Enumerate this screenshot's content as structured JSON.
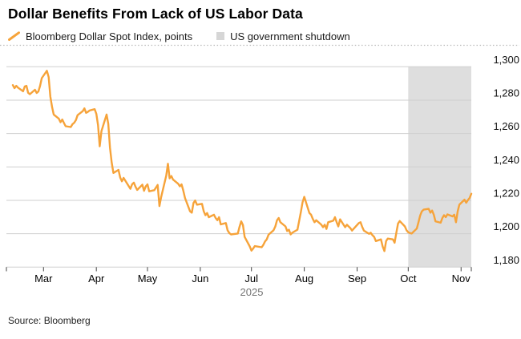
{
  "title": "Dollar Benefits From Lack of US Labor Data",
  "source": "Source: Bloomberg",
  "legend": [
    {
      "label": "Bloomberg Dollar Spot Index, points",
      "swatch": "line",
      "color": "#F6A33A"
    },
    {
      "label": "US government shutdown",
      "swatch": "square",
      "color": "#D6D6D6"
    }
  ],
  "colors": {
    "line": "#F6A33A",
    "shutdown_band": "#DEDEDE",
    "gridline": "#CFCFCF",
    "top_dotted": "#B8B8B8",
    "tick": "#444444",
    "axis_text": "#111111",
    "year_text": "#757575"
  },
  "chart_data": {
    "type": "line",
    "title": "Dollar Benefits From Lack of US Labor Data",
    "xlabel": "",
    "ylabel": "points",
    "x_axis": {
      "start": "2025-02-11",
      "end": "2025-11-07",
      "tick_months": [
        "2025-03-01",
        "2025-04-01",
        "2025-05-01",
        "2025-06-01",
        "2025-07-01",
        "2025-08-01",
        "2025-09-01",
        "2025-10-01",
        "2025-11-01"
      ],
      "tick_labels": [
        "Mar",
        "Apr",
        "May",
        "Jun",
        "Jul",
        "Aug",
        "Sep",
        "Oct",
        "Nov"
      ],
      "year_label": "2025"
    },
    "y_axis": {
      "min": 1180,
      "max": 1300,
      "step": 20,
      "tick_values": [
        1180,
        1200,
        1220,
        1240,
        1260,
        1280,
        1300
      ],
      "tick_labels": [
        "1,180",
        "1,200",
        "1,220",
        "1,240",
        "1,260",
        "1,280",
        "1,300"
      ],
      "grid": true,
      "labels_position": "right"
    },
    "shaded_region": {
      "label": "US government shutdown",
      "start": "2025-10-01",
      "end": "2025-11-07",
      "color": "#DEDEDE"
    },
    "legend_position": "top-left",
    "series": [
      {
        "name": "Bloomberg Dollar Spot Index, points",
        "color": "#F6A33A",
        "points": [
          [
            "2025-02-11",
            1289.0
          ],
          [
            "2025-02-12",
            1287.2
          ],
          [
            "2025-02-13",
            1288.6
          ],
          [
            "2025-02-14",
            1287.5
          ],
          [
            "2025-02-17",
            1285.3
          ],
          [
            "2025-02-18",
            1288.2
          ],
          [
            "2025-02-19",
            1288.6
          ],
          [
            "2025-02-20",
            1284.4
          ],
          [
            "2025-02-21",
            1283.6
          ],
          [
            "2025-02-24",
            1286.2
          ],
          [
            "2025-02-25",
            1284.3
          ],
          [
            "2025-02-26",
            1285.2
          ],
          [
            "2025-02-27",
            1288.6
          ],
          [
            "2025-02-28",
            1293.2
          ],
          [
            "2025-03-03",
            1297.6
          ],
          [
            "2025-03-04",
            1293.8
          ],
          [
            "2025-03-05",
            1282.2
          ],
          [
            "2025-03-06",
            1276.1
          ],
          [
            "2025-03-07",
            1271.4
          ],
          [
            "2025-03-10",
            1268.9
          ],
          [
            "2025-03-11",
            1266.8
          ],
          [
            "2025-03-12",
            1268.4
          ],
          [
            "2025-03-13",
            1266.3
          ],
          [
            "2025-03-14",
            1264.4
          ],
          [
            "2025-03-17",
            1263.9
          ],
          [
            "2025-03-18",
            1265.6
          ],
          [
            "2025-03-19",
            1266.5
          ],
          [
            "2025-03-20",
            1268.1
          ],
          [
            "2025-03-21",
            1271.0
          ],
          [
            "2025-03-24",
            1273.4
          ],
          [
            "2025-03-25",
            1275.1
          ],
          [
            "2025-03-26",
            1272.4
          ],
          [
            "2025-03-27",
            1273.0
          ],
          [
            "2025-03-28",
            1273.8
          ],
          [
            "2025-03-31",
            1274.6
          ],
          [
            "2025-04-01",
            1271.8
          ],
          [
            "2025-04-02",
            1265.0
          ],
          [
            "2025-04-03",
            1252.4
          ],
          [
            "2025-04-04",
            1261.5
          ],
          [
            "2025-04-07",
            1271.4
          ],
          [
            "2025-04-08",
            1265.8
          ],
          [
            "2025-04-09",
            1251.6
          ],
          [
            "2025-04-10",
            1242.8
          ],
          [
            "2025-04-11",
            1236.4
          ],
          [
            "2025-04-14",
            1238.2
          ],
          [
            "2025-04-15",
            1233.6
          ],
          [
            "2025-04-16",
            1231.4
          ],
          [
            "2025-04-17",
            1233.4
          ],
          [
            "2025-04-21",
            1226.9
          ],
          [
            "2025-04-22",
            1229.6
          ],
          [
            "2025-04-23",
            1230.6
          ],
          [
            "2025-04-24",
            1228.1
          ],
          [
            "2025-04-25",
            1226.2
          ],
          [
            "2025-04-28",
            1229.4
          ],
          [
            "2025-04-29",
            1225.7
          ],
          [
            "2025-04-30",
            1228.4
          ],
          [
            "2025-05-01",
            1229.6
          ],
          [
            "2025-05-02",
            1225.4
          ],
          [
            "2025-05-05",
            1226.1
          ],
          [
            "2025-05-07",
            1229.2
          ],
          [
            "2025-05-08",
            1216.6
          ],
          [
            "2025-05-09",
            1221.8
          ],
          [
            "2025-05-12",
            1234.8
          ],
          [
            "2025-05-13",
            1241.9
          ],
          [
            "2025-05-14",
            1233.2
          ],
          [
            "2025-05-15",
            1234.6
          ],
          [
            "2025-05-16",
            1232.4
          ],
          [
            "2025-05-19",
            1229.9
          ],
          [
            "2025-05-20",
            1228.4
          ],
          [
            "2025-05-21",
            1229.6
          ],
          [
            "2025-05-22",
            1226.0
          ],
          [
            "2025-05-23",
            1221.4
          ],
          [
            "2025-05-26",
            1213.4
          ],
          [
            "2025-05-27",
            1212.6
          ],
          [
            "2025-05-28",
            1218.4
          ],
          [
            "2025-05-29",
            1219.9
          ],
          [
            "2025-05-30",
            1217.4
          ],
          [
            "2025-06-02",
            1217.9
          ],
          [
            "2025-06-03",
            1213.4
          ],
          [
            "2025-06-04",
            1211.1
          ],
          [
            "2025-06-05",
            1212.4
          ],
          [
            "2025-06-06",
            1209.9
          ],
          [
            "2025-06-09",
            1211.4
          ],
          [
            "2025-06-10",
            1209.4
          ],
          [
            "2025-06-11",
            1208.1
          ],
          [
            "2025-06-12",
            1209.9
          ],
          [
            "2025-06-13",
            1205.6
          ],
          [
            "2025-06-16",
            1206.4
          ],
          [
            "2025-06-17",
            1202.1
          ],
          [
            "2025-06-18",
            1200.4
          ],
          [
            "2025-06-19",
            1199.6
          ],
          [
            "2025-06-23",
            1200.1
          ],
          [
            "2025-06-24",
            1204.1
          ],
          [
            "2025-06-25",
            1207.4
          ],
          [
            "2025-06-26",
            1205.2
          ],
          [
            "2025-06-27",
            1198.1
          ],
          [
            "2025-06-30",
            1192.4
          ],
          [
            "2025-07-01",
            1189.9
          ],
          [
            "2025-07-02",
            1191.1
          ],
          [
            "2025-07-03",
            1192.6
          ],
          [
            "2025-07-07",
            1191.9
          ],
          [
            "2025-07-08",
            1193.4
          ],
          [
            "2025-07-09",
            1195.4
          ],
          [
            "2025-07-10",
            1196.6
          ],
          [
            "2025-07-11",
            1199.4
          ],
          [
            "2025-07-14",
            1202.1
          ],
          [
            "2025-07-15",
            1204.4
          ],
          [
            "2025-07-16",
            1208.1
          ],
          [
            "2025-07-17",
            1209.4
          ],
          [
            "2025-07-18",
            1206.9
          ],
          [
            "2025-07-21",
            1204.4
          ],
          [
            "2025-07-22",
            1201.6
          ],
          [
            "2025-07-23",
            1202.4
          ],
          [
            "2025-07-24",
            1199.6
          ],
          [
            "2025-07-25",
            1200.6
          ],
          [
            "2025-07-28",
            1202.4
          ],
          [
            "2025-07-29",
            1207.6
          ],
          [
            "2025-07-30",
            1213.1
          ],
          [
            "2025-07-31",
            1218.9
          ],
          [
            "2025-08-01",
            1222.1
          ],
          [
            "2025-08-04",
            1212.4
          ],
          [
            "2025-08-05",
            1211.4
          ],
          [
            "2025-08-06",
            1208.9
          ],
          [
            "2025-08-07",
            1206.9
          ],
          [
            "2025-08-08",
            1208.1
          ],
          [
            "2025-08-11",
            1205.4
          ],
          [
            "2025-08-12",
            1203.9
          ],
          [
            "2025-08-13",
            1205.4
          ],
          [
            "2025-08-14",
            1202.9
          ],
          [
            "2025-08-15",
            1206.9
          ],
          [
            "2025-08-18",
            1207.8
          ],
          [
            "2025-08-19",
            1209.9
          ],
          [
            "2025-08-20",
            1206.9
          ],
          [
            "2025-08-21",
            1204.4
          ],
          [
            "2025-08-22",
            1208.6
          ],
          [
            "2025-08-25",
            1203.9
          ],
          [
            "2025-08-26",
            1205.4
          ],
          [
            "2025-08-27",
            1204.4
          ],
          [
            "2025-08-28",
            1203.4
          ],
          [
            "2025-08-29",
            1201.9
          ],
          [
            "2025-09-02",
            1206.4
          ],
          [
            "2025-09-03",
            1206.9
          ],
          [
            "2025-09-04",
            1204.1
          ],
          [
            "2025-09-05",
            1201.9
          ],
          [
            "2025-09-08",
            1199.9
          ],
          [
            "2025-09-09",
            1200.6
          ],
          [
            "2025-09-10",
            1199.1
          ],
          [
            "2025-09-11",
            1198.1
          ],
          [
            "2025-09-12",
            1195.6
          ],
          [
            "2025-09-15",
            1196.6
          ],
          [
            "2025-09-16",
            1192.4
          ],
          [
            "2025-09-17",
            1189.6
          ],
          [
            "2025-09-18",
            1195.6
          ],
          [
            "2025-09-19",
            1197.1
          ],
          [
            "2025-09-22",
            1196.6
          ],
          [
            "2025-09-23",
            1194.6
          ],
          [
            "2025-09-24",
            1200.4
          ],
          [
            "2025-09-25",
            1206.1
          ],
          [
            "2025-09-26",
            1207.6
          ],
          [
            "2025-09-29",
            1204.4
          ],
          [
            "2025-09-30",
            1202.1
          ],
          [
            "2025-10-01",
            1200.9
          ],
          [
            "2025-10-02",
            1200.4
          ],
          [
            "2025-10-03",
            1200.1
          ],
          [
            "2025-10-06",
            1203.1
          ],
          [
            "2025-10-07",
            1206.9
          ],
          [
            "2025-10-08",
            1210.9
          ],
          [
            "2025-10-09",
            1213.4
          ],
          [
            "2025-10-10",
            1214.4
          ],
          [
            "2025-10-13",
            1214.9
          ],
          [
            "2025-10-14",
            1212.6
          ],
          [
            "2025-10-15",
            1213.9
          ],
          [
            "2025-10-16",
            1211.4
          ],
          [
            "2025-10-17",
            1207.4
          ],
          [
            "2025-10-20",
            1206.6
          ],
          [
            "2025-10-21",
            1209.4
          ],
          [
            "2025-10-22",
            1211.1
          ],
          [
            "2025-10-23",
            1209.9
          ],
          [
            "2025-10-24",
            1211.6
          ],
          [
            "2025-10-27",
            1210.4
          ],
          [
            "2025-10-28",
            1211.4
          ],
          [
            "2025-10-29",
            1206.9
          ],
          [
            "2025-10-30",
            1213.4
          ],
          [
            "2025-10-31",
            1217.4
          ],
          [
            "2025-11-03",
            1220.4
          ],
          [
            "2025-11-04",
            1218.6
          ],
          [
            "2025-11-05",
            1220.1
          ],
          [
            "2025-11-06",
            1221.4
          ],
          [
            "2025-11-07",
            1223.9
          ]
        ]
      }
    ]
  }
}
